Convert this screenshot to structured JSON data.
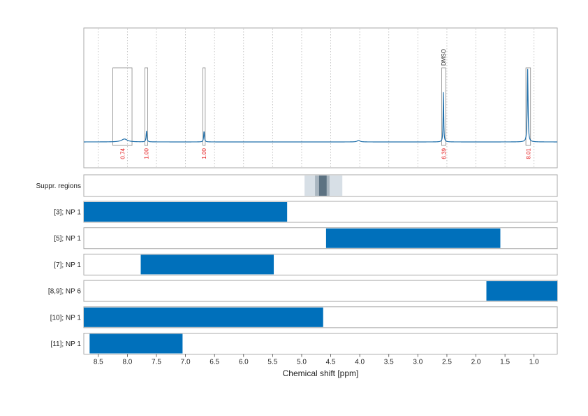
{
  "chart_data": {
    "type": "line",
    "xlabel": "Chemical shift [ppm]",
    "xlim": [
      8.75,
      0.6
    ],
    "x_ticks": [
      8.5,
      8.0,
      7.5,
      7.0,
      6.5,
      6.0,
      5.5,
      5.0,
      4.5,
      4.0,
      3.5,
      3.0,
      2.5,
      2.0,
      1.5,
      1.0
    ],
    "x_tick_labels": [
      "8.5",
      "8.0",
      "7.5",
      "7.0",
      "6.5",
      "6.0",
      "5.5",
      "5.0",
      "4.5",
      "4.0",
      "3.5",
      "3.0",
      "2.5",
      "2.0",
      "1.5",
      "1.0"
    ],
    "grid": "vertical dotted",
    "spectrum": {
      "color": "#1f6faa",
      "peaks": [
        {
          "x": 8.05,
          "height": 0.04,
          "width": 0.06
        },
        {
          "x": 7.67,
          "height": 0.15,
          "width": 0.008
        },
        {
          "x": 6.68,
          "height": 0.15,
          "width": 0.008
        },
        {
          "x": 4.02,
          "height": 0.02,
          "width": 0.03
        },
        {
          "x": 2.56,
          "height": 0.7,
          "width": 0.006
        },
        {
          "x": 1.11,
          "height": 1.0,
          "width": 0.008
        }
      ]
    },
    "integrals": [
      {
        "x_range": [
          8.25,
          7.92
        ],
        "value_label": "0.74"
      },
      {
        "x_range": [
          7.7,
          7.65
        ],
        "value_label": "1.00"
      },
      {
        "x_range": [
          6.7,
          6.66
        ],
        "value_label": "1.00"
      },
      {
        "x_range": [
          2.59,
          2.52
        ],
        "value_label": "6.39"
      },
      {
        "x_range": [
          1.14,
          1.06
        ],
        "value_label": "8.01"
      }
    ],
    "annotations": [
      {
        "text": "DMSO",
        "x": 2.56
      }
    ],
    "suppressed_regions": {
      "label": "Suppr. regions",
      "bands": [
        {
          "x_range": [
            4.95,
            4.3
          ],
          "color": "#d7dfe6"
        },
        {
          "x_range": [
            4.77,
            4.52
          ],
          "color": "#a9b6c0"
        },
        {
          "x_range": [
            4.7,
            4.57
          ],
          "color": "#5c7282"
        }
      ]
    },
    "region_rows": [
      {
        "label": "[3]; NP 1",
        "x_range": [
          8.75,
          5.25
        ]
      },
      {
        "label": "[5]; NP 1",
        "x_range": [
          4.58,
          1.58
        ]
      },
      {
        "label": "[7]; NP 1",
        "x_range": [
          7.77,
          5.48
        ]
      },
      {
        "label": "[8,9]; NP 6",
        "x_range": [
          1.82,
          0.6
        ]
      },
      {
        "label": "[10]; NP 1",
        "x_range": [
          8.75,
          4.63
        ]
      },
      {
        "label": "[11]; NP 1",
        "x_range": [
          8.65,
          7.05
        ]
      }
    ],
    "bar_color": "#0070bb"
  }
}
